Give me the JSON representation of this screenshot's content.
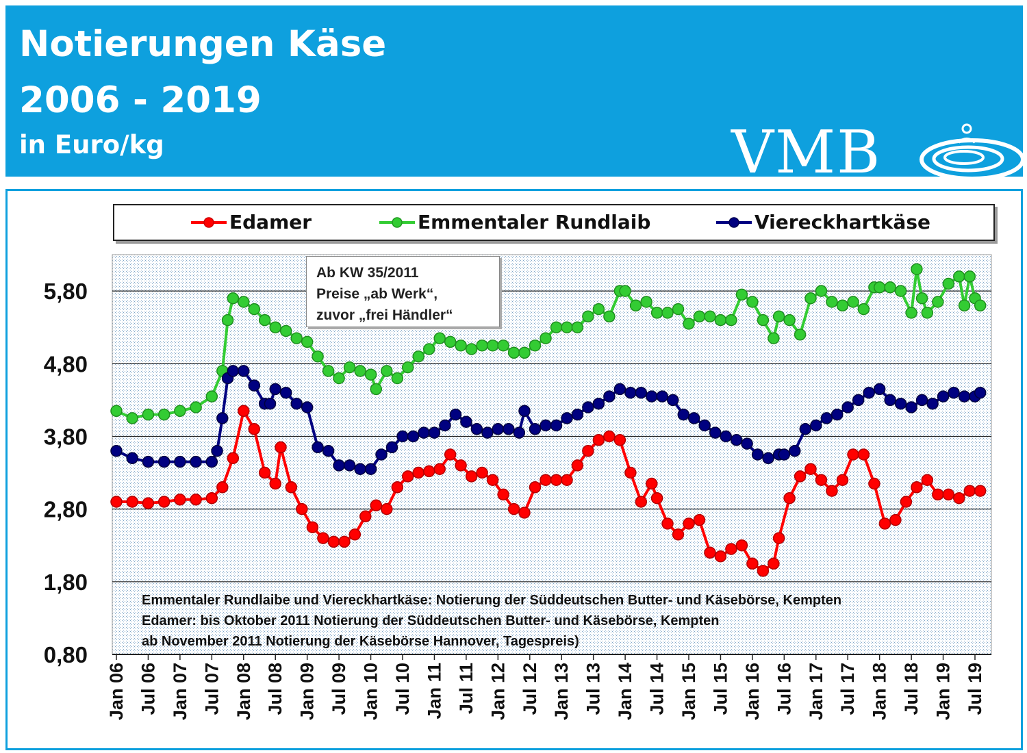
{
  "header": {
    "title_line1": "Notierungen Käse",
    "title_line2": "2006 - 2019",
    "unit": "in Euro/kg",
    "logo_text": "VMB"
  },
  "annotation": {
    "line1": "Ab KW 35/2011",
    "line2": "Preise „ab Werk“,",
    "line3": "zuvor „frei Händler“"
  },
  "notes": {
    "line1": "Emmentaler Rundlaibe und Viereckhartkäse: Notierung der Süddeutschen Butter-  und Käsebörse, Kempten",
    "line2": "Edamer: bis Oktober 2011  Notierung der Süddeutschen Butter- und Käsebörse, Kempten",
    "line3": "ab November 2011  Notierung der Käsebörse Hannover, Tagespreis)"
  },
  "colors": {
    "header_bg": "#0ea0de",
    "edamer": "#ff0000",
    "emmentaler": "#33cc33",
    "viereck": "#000080"
  },
  "chart_data": {
    "type": "line",
    "title": "Notierungen Käse 2006 - 2019",
    "ylabel": "in Euro/kg",
    "ylim": [
      0.8,
      6.3
    ],
    "y_ticks": [
      "0,80",
      "1,80",
      "2,80",
      "3,80",
      "4,80",
      "5,80"
    ],
    "y_tick_values": [
      0.8,
      1.8,
      2.8,
      3.8,
      4.8,
      5.8
    ],
    "x_ticks": [
      "Jan 06",
      "Jul 06",
      "Jan 07",
      "Jul 07",
      "Jan 08",
      "Jul 08",
      "Jan 09",
      "Jul 09",
      "Jan 10",
      "Jul 10",
      "Jan 11",
      "Jul 11",
      "Jan 12",
      "Jul 12",
      "Jan 13",
      "Jul 13",
      "Jan 14",
      "Jul 14",
      "Jan 15",
      "Jul 15",
      "Jan 16",
      "Jul 16",
      "Jan 17",
      "Jul 17",
      "Jan 18",
      "Jul 18",
      "Jan 19",
      "Jul 19"
    ],
    "grid": true,
    "legend_position": "top",
    "series": [
      {
        "name": "Edamer",
        "color": "#ff0000",
        "x": [
          "2006-01",
          "2006-04",
          "2006-07",
          "2006-10",
          "2007-01",
          "2007-04",
          "2007-07",
          "2007-09",
          "2007-11",
          "2008-01",
          "2008-03",
          "2008-05",
          "2008-07",
          "2008-08",
          "2008-10",
          "2008-12",
          "2009-02",
          "2009-04",
          "2009-06",
          "2009-08",
          "2009-10",
          "2009-12",
          "2010-02",
          "2010-04",
          "2010-06",
          "2010-08",
          "2010-10",
          "2010-12",
          "2011-02",
          "2011-04",
          "2011-06",
          "2011-08",
          "2011-10",
          "2011-12",
          "2012-02",
          "2012-04",
          "2012-06",
          "2012-08",
          "2012-10",
          "2012-12",
          "2013-02",
          "2013-04",
          "2013-06",
          "2013-08",
          "2013-10",
          "2013-12",
          "2014-02",
          "2014-04",
          "2014-06",
          "2014-07",
          "2014-09",
          "2014-11",
          "2015-01",
          "2015-03",
          "2015-05",
          "2015-07",
          "2015-09",
          "2015-11",
          "2016-01",
          "2016-03",
          "2016-05",
          "2016-06",
          "2016-08",
          "2016-10",
          "2016-12",
          "2017-02",
          "2017-04",
          "2017-06",
          "2017-08",
          "2017-10",
          "2017-12",
          "2018-02",
          "2018-04",
          "2018-06",
          "2018-08",
          "2018-10",
          "2018-12",
          "2019-02",
          "2019-04",
          "2019-06",
          "2019-08"
        ],
        "values": [
          2.9,
          2.9,
          2.88,
          2.9,
          2.93,
          2.93,
          2.95,
          3.1,
          3.5,
          4.15,
          3.9,
          3.3,
          3.15,
          3.65,
          3.1,
          2.8,
          2.55,
          2.4,
          2.35,
          2.35,
          2.45,
          2.7,
          2.85,
          2.8,
          3.1,
          3.25,
          3.3,
          3.32,
          3.35,
          3.55,
          3.4,
          3.25,
          3.3,
          3.2,
          3.0,
          2.8,
          2.75,
          3.1,
          3.2,
          3.2,
          3.2,
          3.4,
          3.6,
          3.75,
          3.8,
          3.75,
          3.3,
          2.9,
          3.15,
          2.95,
          2.6,
          2.45,
          2.6,
          2.65,
          2.2,
          2.15,
          2.25,
          2.3,
          2.05,
          1.95,
          2.05,
          2.4,
          2.95,
          3.25,
          3.35,
          3.2,
          3.05,
          3.2,
          3.55,
          3.55,
          3.15,
          2.6,
          2.65,
          2.9,
          3.1,
          3.2,
          3.0,
          3.0,
          2.95,
          3.05,
          3.05
        ]
      },
      {
        "name": "Emmentaler Rundlaib",
        "color": "#33cc33",
        "x": [
          "2006-01",
          "2006-04",
          "2006-07",
          "2006-10",
          "2007-01",
          "2007-04",
          "2007-07",
          "2007-09",
          "2007-10",
          "2007-11",
          "2008-01",
          "2008-03",
          "2008-05",
          "2008-07",
          "2008-09",
          "2008-11",
          "2009-01",
          "2009-03",
          "2009-05",
          "2009-07",
          "2009-09",
          "2009-11",
          "2010-01",
          "2010-02",
          "2010-04",
          "2010-06",
          "2010-08",
          "2010-10",
          "2010-12",
          "2011-02",
          "2011-04",
          "2011-06",
          "2011-08",
          "2011-10",
          "2011-12",
          "2012-02",
          "2012-04",
          "2012-06",
          "2012-08",
          "2012-10",
          "2012-12",
          "2013-02",
          "2013-04",
          "2013-06",
          "2013-08",
          "2013-10",
          "2013-12",
          "2014-01",
          "2014-03",
          "2014-05",
          "2014-07",
          "2014-09",
          "2014-11",
          "2015-01",
          "2015-03",
          "2015-05",
          "2015-07",
          "2015-09",
          "2015-11",
          "2016-01",
          "2016-03",
          "2016-05",
          "2016-06",
          "2016-08",
          "2016-10",
          "2016-12",
          "2017-02",
          "2017-04",
          "2017-06",
          "2017-08",
          "2017-10",
          "2017-12",
          "2018-01",
          "2018-03",
          "2018-05",
          "2018-07",
          "2018-08",
          "2018-09",
          "2018-10",
          "2018-12",
          "2019-02",
          "2019-04",
          "2019-05",
          "2019-06",
          "2019-07",
          "2019-08"
        ],
        "values": [
          4.15,
          4.05,
          4.1,
          4.1,
          4.15,
          4.2,
          4.35,
          4.7,
          5.4,
          5.7,
          5.65,
          5.55,
          5.4,
          5.3,
          5.25,
          5.15,
          5.1,
          4.9,
          4.7,
          4.6,
          4.75,
          4.7,
          4.65,
          4.45,
          4.7,
          4.6,
          4.75,
          4.9,
          5.0,
          5.15,
          5.1,
          5.05,
          5.0,
          5.05,
          5.05,
          5.05,
          4.95,
          4.95,
          5.05,
          5.15,
          5.3,
          5.3,
          5.3,
          5.45,
          5.55,
          5.45,
          5.8,
          5.8,
          5.6,
          5.65,
          5.5,
          5.5,
          5.55,
          5.35,
          5.45,
          5.45,
          5.4,
          5.4,
          5.75,
          5.65,
          5.4,
          5.15,
          5.45,
          5.4,
          5.2,
          5.7,
          5.8,
          5.65,
          5.6,
          5.65,
          5.55,
          5.85,
          5.85,
          5.85,
          5.8,
          5.5,
          6.1,
          5.7,
          5.5,
          5.65,
          5.9,
          6.0,
          5.6,
          6.0,
          5.7,
          5.6
        ]
      },
      {
        "name": "Viereckhartkäse",
        "color": "#000080",
        "x": [
          "2006-01",
          "2006-04",
          "2006-07",
          "2006-10",
          "2007-01",
          "2007-04",
          "2007-07",
          "2007-08",
          "2007-09",
          "2007-10",
          "2007-11",
          "2008-01",
          "2008-03",
          "2008-05",
          "2008-06",
          "2008-07",
          "2008-09",
          "2008-11",
          "2009-01",
          "2009-03",
          "2009-05",
          "2009-07",
          "2009-09",
          "2009-11",
          "2010-01",
          "2010-03",
          "2010-05",
          "2010-07",
          "2010-09",
          "2010-11",
          "2011-01",
          "2011-03",
          "2011-05",
          "2011-07",
          "2011-09",
          "2011-11",
          "2012-01",
          "2012-03",
          "2012-05",
          "2012-06",
          "2012-08",
          "2012-10",
          "2012-12",
          "2013-02",
          "2013-04",
          "2013-06",
          "2013-08",
          "2013-10",
          "2013-12",
          "2014-02",
          "2014-04",
          "2014-06",
          "2014-08",
          "2014-10",
          "2014-12",
          "2015-02",
          "2015-04",
          "2015-06",
          "2015-08",
          "2015-10",
          "2015-12",
          "2016-02",
          "2016-04",
          "2016-06",
          "2016-07",
          "2016-09",
          "2016-11",
          "2017-01",
          "2017-03",
          "2017-05",
          "2017-07",
          "2017-09",
          "2017-11",
          "2018-01",
          "2018-03",
          "2018-05",
          "2018-07",
          "2018-09",
          "2018-11",
          "2019-01",
          "2019-03",
          "2019-05",
          "2019-07",
          "2019-08"
        ],
        "values": [
          3.6,
          3.5,
          3.45,
          3.45,
          3.45,
          3.45,
          3.45,
          3.6,
          4.05,
          4.6,
          4.7,
          4.7,
          4.5,
          4.25,
          4.25,
          4.45,
          4.4,
          4.25,
          4.2,
          3.65,
          3.6,
          3.4,
          3.4,
          3.35,
          3.35,
          3.55,
          3.65,
          3.8,
          3.8,
          3.85,
          3.85,
          3.95,
          4.1,
          4.0,
          3.9,
          3.85,
          3.9,
          3.9,
          3.85,
          4.15,
          3.9,
          3.95,
          3.95,
          4.05,
          4.1,
          4.2,
          4.25,
          4.35,
          4.45,
          4.4,
          4.4,
          4.35,
          4.35,
          4.3,
          4.1,
          4.05,
          3.95,
          3.85,
          3.8,
          3.75,
          3.7,
          3.55,
          3.5,
          3.55,
          3.55,
          3.6,
          3.9,
          3.95,
          4.05,
          4.1,
          4.2,
          4.3,
          4.4,
          4.45,
          4.3,
          4.25,
          4.2,
          4.3,
          4.25,
          4.35,
          4.4,
          4.35,
          4.35,
          4.4
        ]
      }
    ]
  }
}
